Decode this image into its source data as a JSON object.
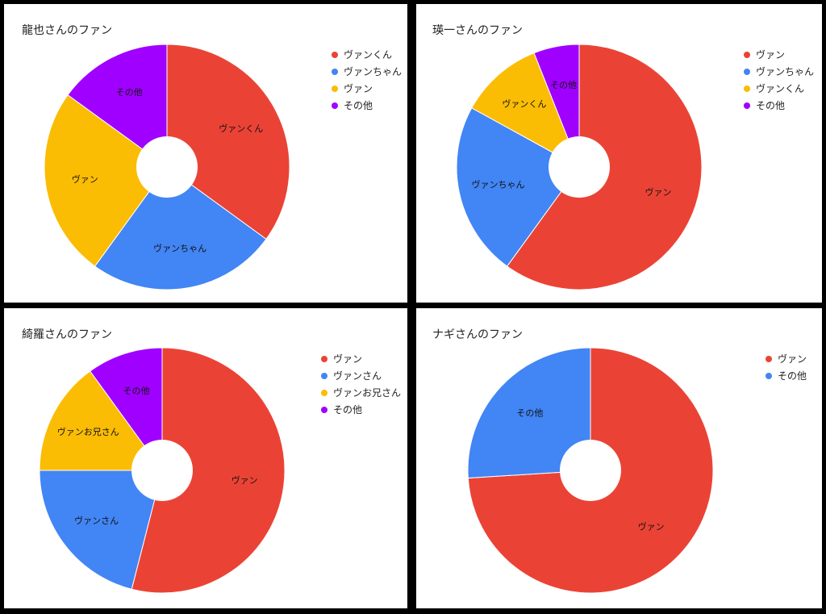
{
  "chart_data": [
    {
      "type": "pie",
      "title": "龍也さんのファン",
      "categories": [
        "ヴァンくん",
        "ヴァンちゃん",
        "ヴァン",
        "その他"
      ],
      "values": [
        35,
        25,
        25,
        15
      ],
      "colors": [
        "#EA4335",
        "#4285F4",
        "#FBBC04",
        "#A000FF"
      ],
      "legend": "right"
    },
    {
      "type": "pie",
      "title": "瑛一さんのファン",
      "categories": [
        "ヴァン",
        "ヴァンちゃん",
        "ヴァンくん",
        "その他"
      ],
      "values": [
        60,
        23,
        11,
        6
      ],
      "colors": [
        "#EA4335",
        "#4285F4",
        "#FBBC04",
        "#A000FF"
      ],
      "legend": "right"
    },
    {
      "type": "pie",
      "title": "綺羅さんのファン",
      "categories": [
        "ヴァン",
        "ヴァンさん",
        "ヴァンお兄さん",
        "その他"
      ],
      "values": [
        54,
        21,
        15,
        10
      ],
      "colors": [
        "#EA4335",
        "#4285F4",
        "#FBBC04",
        "#A000FF"
      ],
      "legend": "right"
    },
    {
      "type": "pie",
      "title": "ナギさんのファン",
      "categories": [
        "ヴァン",
        "その他"
      ],
      "values": [
        74,
        26
      ],
      "colors": [
        "#EA4335",
        "#4285F4"
      ],
      "legend": "right"
    }
  ]
}
